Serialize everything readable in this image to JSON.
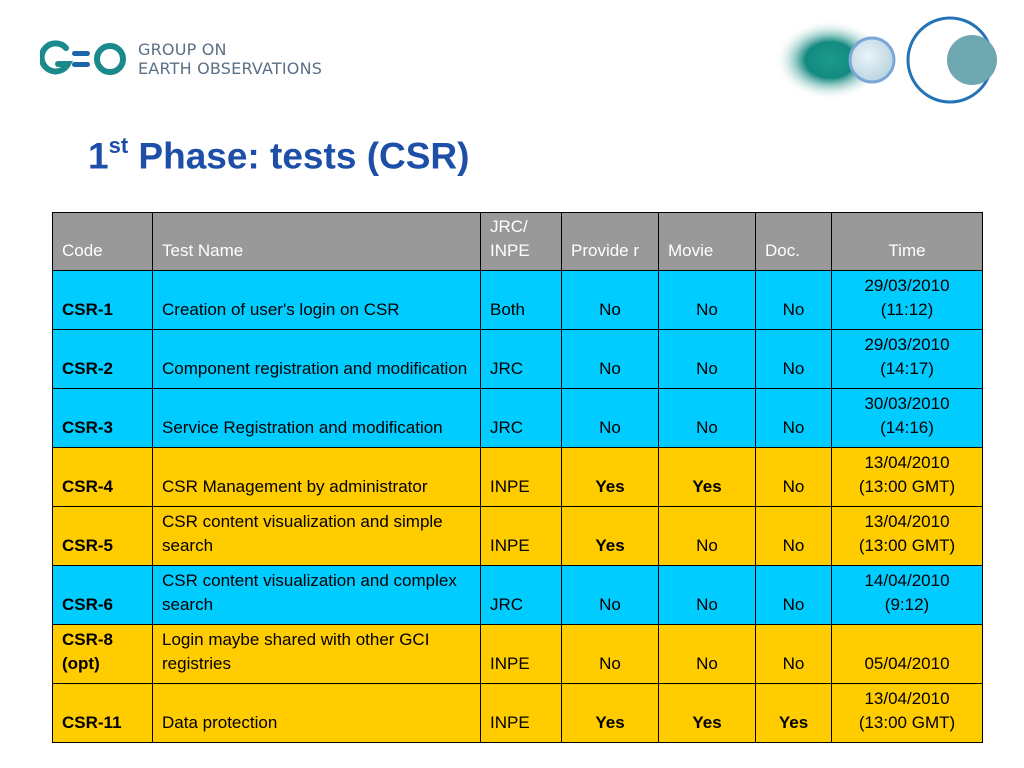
{
  "logo": {
    "mark": "GEO",
    "line1": "GROUP ON",
    "line2": "EARTH OBSERVATIONS"
  },
  "title": {
    "num": "1",
    "sup": "st",
    "rest": " Phase: tests (CSR)"
  },
  "table": {
    "headers": {
      "code": "Code",
      "test_name": "Test Name",
      "jrc_inpe": "JRC/ INPE",
      "provider": "Provide r",
      "movie": "Movie",
      "doc": "Doc.",
      "time": "Time"
    },
    "rows": [
      {
        "code": "CSR-1",
        "name": "Creation of user's login on CSR",
        "org": "Both",
        "provider": "No",
        "movie": "No",
        "doc": "No",
        "time": "29/03/2010 (11:12)",
        "color": "#00ccff"
      },
      {
        "code": "CSR-2",
        "name": "Component registration and modification",
        "org": "JRC",
        "provider": "No",
        "movie": "No",
        "doc": "No",
        "time": "29/03/2010 (14:17)",
        "color": "#00ccff"
      },
      {
        "code": "CSR-3",
        "name": "Service Registration and modification",
        "org": "JRC",
        "provider": "No",
        "movie": "No",
        "doc": "No",
        "time": "30/03/2010 (14:16)",
        "color": "#00ccff"
      },
      {
        "code": "CSR-4",
        "name": "CSR Management by administrator",
        "org": "INPE",
        "provider": "Yes",
        "movie": "Yes",
        "doc": "No",
        "time": "13/04/2010 (13:00 GMT)",
        "color": "#ffcc00"
      },
      {
        "code": "CSR-5",
        "name": "CSR content visualization and simple search",
        "org": "INPE",
        "provider": "Yes",
        "movie": "No",
        "doc": "No",
        "time": "13/04/2010 (13:00 GMT)",
        "color": "#ffcc00"
      },
      {
        "code": "CSR-6",
        "name": "CSR content visualization and complex search",
        "org": "JRC",
        "provider": "No",
        "movie": "No",
        "doc": "No",
        "time": "14/04/2010 (9:12)",
        "color": "#00ccff"
      },
      {
        "code": "CSR-8 (opt)",
        "name": "Login maybe shared with other GCI registries",
        "org": "INPE",
        "provider": "No",
        "movie": "No",
        "doc": "No",
        "time": "05/04/2010",
        "color": "#ffcc00"
      },
      {
        "code": "CSR-11",
        "name": "Data protection",
        "org": "INPE",
        "provider": "Yes",
        "movie": "Yes",
        "doc": "Yes",
        "time": "13/04/2010 (13:00 GMT)",
        "color": "#ffcc00"
      }
    ]
  },
  "colors": {
    "title": "#1d4fa8",
    "header_bg": "#999999",
    "jrc_row": "#00ccff",
    "inpe_row": "#ffcc00",
    "logo_teal": "#1a8a8c",
    "logo_blue": "#1d64a8"
  }
}
